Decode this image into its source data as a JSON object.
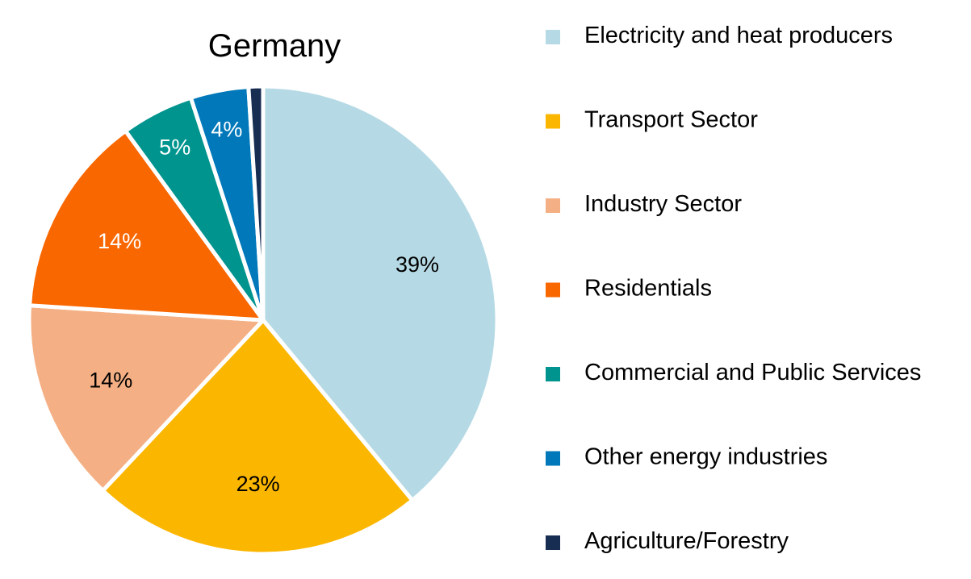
{
  "chart_data": {
    "type": "pie",
    "title": "Germany",
    "legend_position": "right",
    "slices": [
      {
        "name": "Electricity and heat producers",
        "value": 39,
        "label": "39%",
        "color": "#B6DAE5",
        "label_color": "#000000"
      },
      {
        "name": "Transport Sector",
        "value": 23,
        "label": "23%",
        "color": "#FBB600",
        "label_color": "#000000"
      },
      {
        "name": "Industry Sector",
        "value": 14,
        "label": "14%",
        "color": "#F4B084",
        "label_color": "#000000"
      },
      {
        "name": "Residentials",
        "value": 14,
        "label": "14%",
        "color": "#F96700",
        "label_color": "#FFFFFF"
      },
      {
        "name": "Commercial and Public Services",
        "value": 5,
        "label": "5%",
        "color": "#00948E",
        "label_color": "#FFFFFF"
      },
      {
        "name": "Other energy industries",
        "value": 4,
        "label": "4%",
        "color": "#0078BA",
        "label_color": "#FFFFFF"
      },
      {
        "name": "Agriculture/Forestry",
        "value": 1,
        "label": "",
        "color": "#172D52",
        "label_color": "#FFFFFF"
      }
    ]
  }
}
